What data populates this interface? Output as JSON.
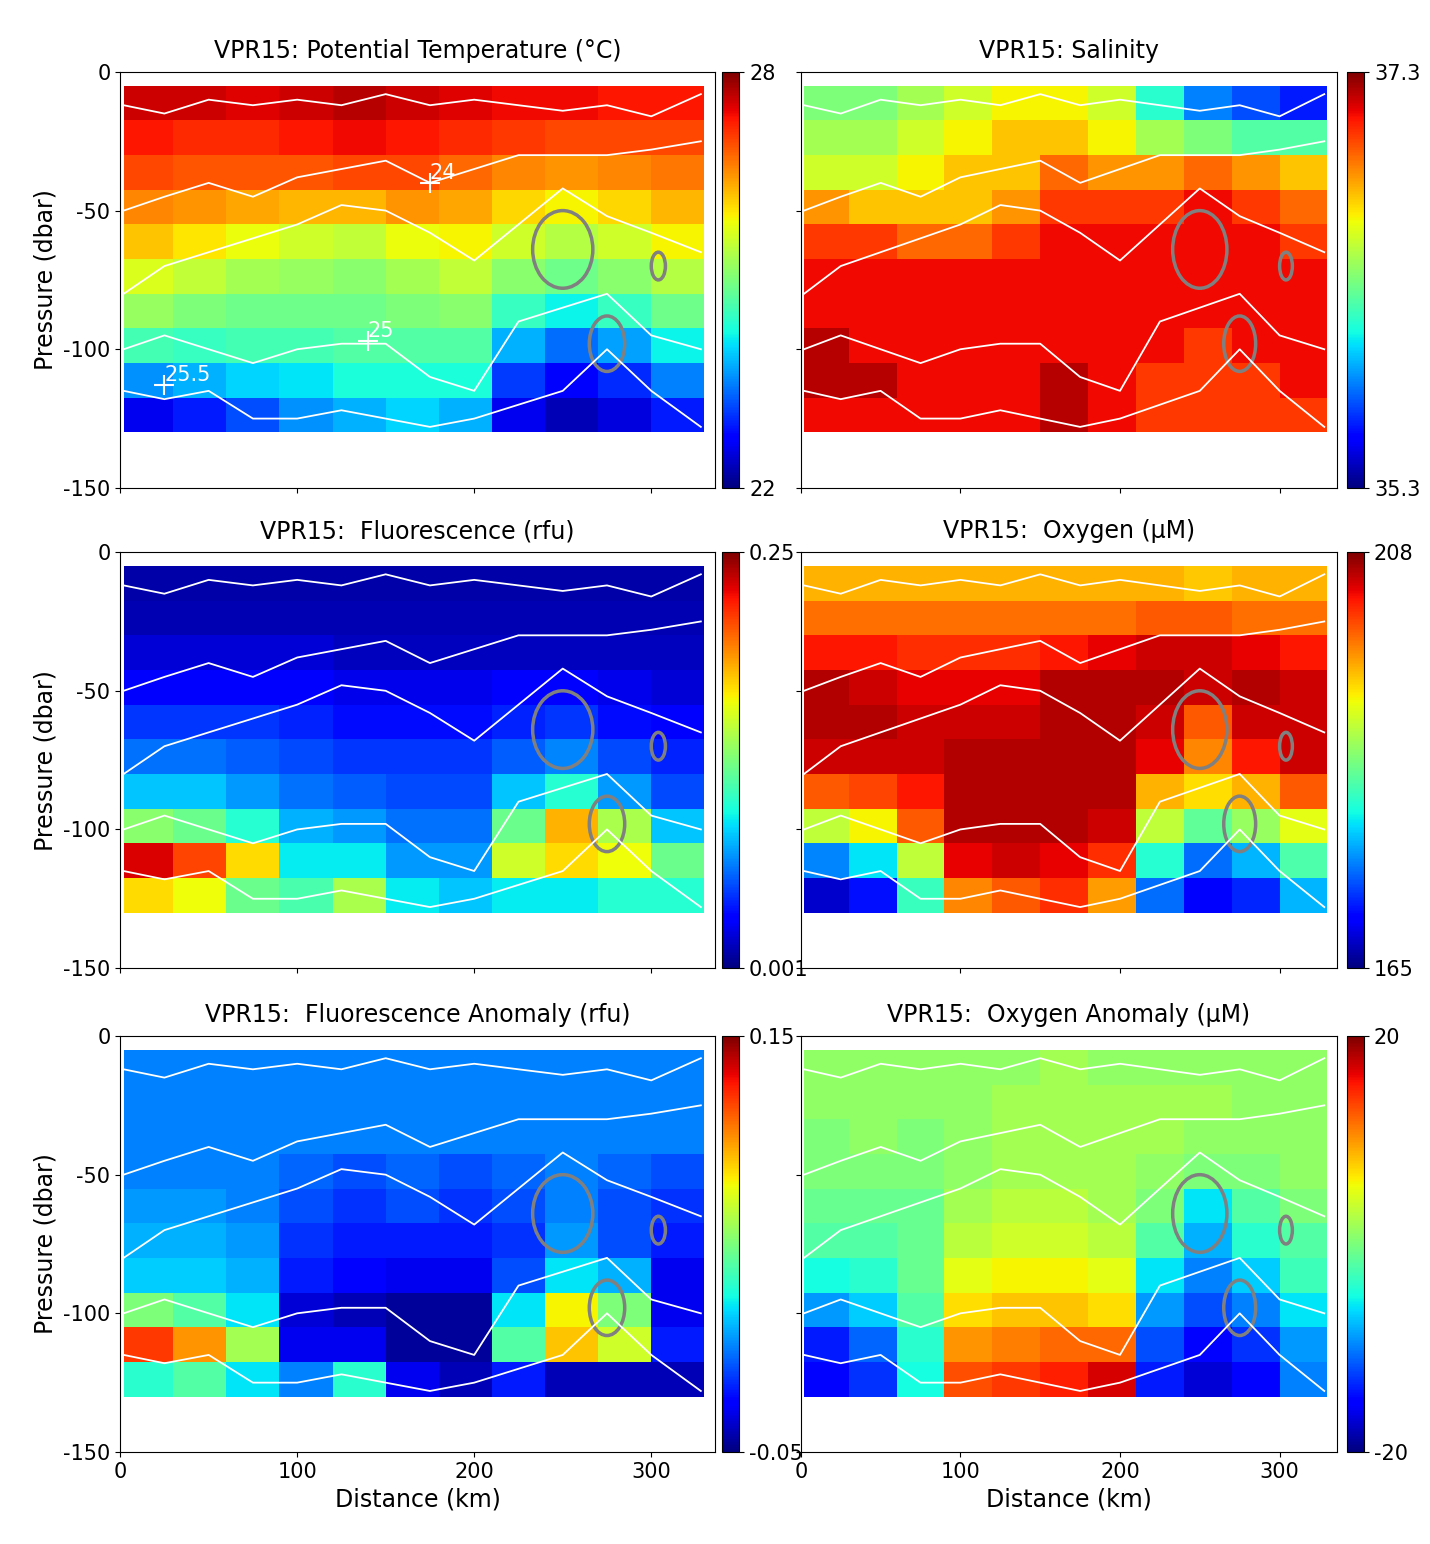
{
  "x_edges": [
    2,
    30,
    60,
    90,
    120,
    150,
    180,
    210,
    240,
    270,
    300,
    330
  ],
  "y_edges": [
    -5,
    -17.5,
    -30,
    -42.5,
    -55,
    -67.5,
    -80,
    -92.5,
    -105,
    -117.5,
    -130
  ],
  "isopycnals": [
    {
      "x": [
        2,
        25,
        50,
        75,
        100,
        125,
        150,
        175,
        200,
        225,
        250,
        275,
        300,
        328
      ],
      "y": [
        -12,
        -15,
        -10,
        -12,
        -10,
        -12,
        -8,
        -12,
        -10,
        -12,
        -14,
        -12,
        -16,
        -8
      ]
    },
    {
      "x": [
        2,
        25,
        50,
        75,
        100,
        125,
        150,
        175,
        200,
        225,
        250,
        275,
        300,
        328
      ],
      "y": [
        -50,
        -45,
        -40,
        -45,
        -38,
        -35,
        -32,
        -40,
        -35,
        -30,
        -30,
        -30,
        -28,
        -25
      ]
    },
    {
      "x": [
        2,
        25,
        50,
        75,
        100,
        125,
        150,
        175,
        200,
        225,
        250,
        275,
        300,
        328
      ],
      "y": [
        -80,
        -70,
        -65,
        -60,
        -55,
        -48,
        -50,
        -58,
        -68,
        -55,
        -42,
        -52,
        -58,
        -65
      ]
    },
    {
      "x": [
        2,
        25,
        50,
        75,
        100,
        125,
        150,
        175,
        200,
        225,
        250,
        275,
        300,
        328
      ],
      "y": [
        -100,
        -95,
        -100,
        -105,
        -100,
        -98,
        -98,
        -110,
        -115,
        -90,
        -85,
        -80,
        -95,
        -100
      ]
    },
    {
      "x": [
        2,
        25,
        50,
        75,
        100,
        125,
        150,
        175,
        200,
        225,
        250,
        275,
        300,
        328
      ],
      "y": [
        -115,
        -118,
        -115,
        -125,
        -125,
        -122,
        -125,
        -128,
        -125,
        -120,
        -115,
        -100,
        -115,
        -128
      ]
    }
  ],
  "circles": [
    {
      "x": 250,
      "y": -64,
      "width": 34,
      "height": 28
    },
    {
      "x": 275,
      "y": -98,
      "width": 20,
      "height": 20
    },
    {
      "x": 304,
      "y": -70,
      "width": 8,
      "height": 10
    }
  ],
  "chart_data": [
    {
      "type": "heatmap",
      "title": "VPR15: Potential Temperature (°C)",
      "y_label": "Pressure (dbar)",
      "xlim": [
        0,
        336
      ],
      "ylim": [
        -150,
        0
      ],
      "xticks": [
        0,
        100,
        200,
        300
      ],
      "yticks": [
        -150,
        -100,
        -50,
        0
      ],
      "tick_labels": "y",
      "colorbar": {
        "range": [
          22,
          28
        ],
        "ticks": [
          22,
          28
        ]
      },
      "isopycnal_labels": [
        {
          "label": "24",
          "x": 175,
          "y": -40
        },
        {
          "label": "25",
          "x": 140,
          "y": -97
        },
        {
          "label": "25.5",
          "x": 25,
          "y": -113
        }
      ],
      "cells": [
        [
          27.6,
          27.6,
          27.5,
          27.6,
          27.7,
          27.6,
          27.5,
          27.4,
          27.4,
          27.3,
          27.3
        ],
        [
          27.3,
          27.2,
          27.2,
          27.3,
          27.4,
          27.3,
          27.2,
          27.1,
          27.0,
          27.0,
          27.0
        ],
        [
          27.0,
          26.9,
          26.9,
          26.9,
          27.0,
          27.0,
          26.8,
          26.6,
          26.5,
          26.6,
          26.7
        ],
        [
          26.6,
          26.5,
          26.4,
          26.3,
          26.3,
          26.5,
          26.4,
          26.1,
          25.9,
          26.1,
          26.3
        ],
        [
          26.2,
          26.0,
          25.8,
          25.6,
          25.5,
          25.8,
          25.9,
          25.6,
          25.4,
          25.6,
          25.9
        ],
        [
          25.7,
          25.5,
          25.3,
          25.2,
          25.1,
          25.3,
          25.5,
          25.1,
          24.9,
          25.1,
          25.4
        ],
        [
          25.2,
          25.0,
          24.9,
          24.9,
          24.9,
          25.0,
          25.1,
          24.5,
          24.2,
          24.5,
          24.9
        ],
        [
          24.6,
          24.5,
          24.6,
          24.6,
          24.7,
          24.7,
          24.7,
          23.8,
          23.4,
          23.7,
          24.2
        ],
        [
          23.6,
          23.8,
          24.0,
          24.1,
          24.3,
          24.3,
          24.3,
          23.1,
          22.7,
          23.0,
          23.5
        ],
        [
          22.6,
          22.9,
          23.2,
          23.6,
          23.8,
          24.0,
          23.8,
          22.6,
          22.3,
          22.5,
          22.9
        ]
      ]
    },
    {
      "type": "heatmap",
      "title": "VPR15: Salinity",
      "xlim": [
        0,
        336
      ],
      "ylim": [
        -150,
        0
      ],
      "xticks": [
        0,
        100,
        200,
        300
      ],
      "yticks": [
        -150,
        -100,
        -50,
        0
      ],
      "tick_labels": false,
      "colorbar": {
        "range": [
          35.3,
          37.3
        ],
        "ticks": [
          35.3,
          37.3
        ]
      },
      "cells": [
        [
          36.3,
          36.3,
          36.4,
          36.5,
          36.6,
          36.6,
          36.5,
          36.1,
          35.8,
          35.7,
          35.6
        ],
        [
          36.4,
          36.4,
          36.5,
          36.6,
          36.7,
          36.7,
          36.6,
          36.4,
          36.3,
          36.2,
          36.2
        ],
        [
          36.5,
          36.5,
          36.6,
          36.7,
          36.7,
          36.9,
          36.8,
          36.8,
          36.9,
          36.8,
          36.7
        ],
        [
          36.8,
          36.7,
          36.7,
          36.7,
          36.8,
          37.0,
          37.0,
          37.0,
          37.1,
          37.0,
          36.9
        ],
        [
          37.0,
          37.0,
          36.9,
          36.9,
          37.0,
          37.1,
          37.1,
          37.1,
          37.1,
          37.1,
          37.0
        ],
        [
          37.1,
          37.1,
          37.1,
          37.1,
          37.1,
          37.1,
          37.1,
          37.1,
          37.1,
          37.1,
          37.1
        ],
        [
          37.1,
          37.1,
          37.1,
          37.1,
          37.1,
          37.1,
          37.1,
          37.1,
          37.1,
          37.1,
          37.1
        ],
        [
          37.2,
          37.1,
          37.1,
          37.1,
          37.1,
          37.1,
          37.1,
          37.1,
          37.0,
          37.1,
          37.1
        ],
        [
          37.2,
          37.2,
          37.1,
          37.1,
          37.1,
          37.2,
          37.1,
          37.0,
          37.0,
          37.0,
          37.1
        ],
        [
          37.1,
          37.1,
          37.1,
          37.1,
          37.1,
          37.2,
          37.1,
          37.0,
          37.0,
          37.0,
          37.0
        ]
      ]
    },
    {
      "type": "heatmap",
      "title": "VPR15:  Fluorescence (rfu)",
      "y_label": "Pressure (dbar)",
      "xlim": [
        0,
        336
      ],
      "ylim": [
        -150,
        0
      ],
      "xticks": [
        0,
        100,
        200,
        300
      ],
      "yticks": [
        -150,
        -100,
        -50,
        0
      ],
      "tick_labels": "y",
      "colorbar": {
        "range": [
          0.001,
          0.25
        ],
        "ticks": [
          0.001,
          0.25
        ]
      },
      "cells": [
        [
          0.01,
          0.01,
          0.01,
          0.01,
          0.01,
          0.01,
          0.01,
          0.01,
          0.01,
          0.01,
          0.01
        ],
        [
          0.012,
          0.012,
          0.012,
          0.012,
          0.012,
          0.012,
          0.012,
          0.012,
          0.012,
          0.012,
          0.012
        ],
        [
          0.02,
          0.02,
          0.02,
          0.02,
          0.015,
          0.015,
          0.015,
          0.015,
          0.015,
          0.015,
          0.015
        ],
        [
          0.03,
          0.03,
          0.03,
          0.03,
          0.025,
          0.025,
          0.025,
          0.03,
          0.03,
          0.025,
          0.02
        ],
        [
          0.045,
          0.045,
          0.045,
          0.04,
          0.035,
          0.035,
          0.035,
          0.04,
          0.045,
          0.035,
          0.03
        ],
        [
          0.06,
          0.06,
          0.055,
          0.05,
          0.045,
          0.045,
          0.045,
          0.055,
          0.065,
          0.05,
          0.04
        ],
        [
          0.08,
          0.08,
          0.07,
          0.06,
          0.055,
          0.05,
          0.05,
          0.08,
          0.1,
          0.07,
          0.05
        ],
        [
          0.13,
          0.12,
          0.1,
          0.075,
          0.07,
          0.06,
          0.06,
          0.12,
          0.18,
          0.14,
          0.08
        ],
        [
          0.23,
          0.21,
          0.17,
          0.09,
          0.09,
          0.07,
          0.07,
          0.15,
          0.17,
          0.16,
          0.12
        ],
        [
          0.17,
          0.16,
          0.12,
          0.11,
          0.14,
          0.09,
          0.08,
          0.09,
          0.09,
          0.1,
          0.1
        ]
      ]
    },
    {
      "type": "heatmap",
      "title": "VPR15:  Oxygen (µM)",
      "xlim": [
        0,
        336
      ],
      "ylim": [
        -150,
        0
      ],
      "xticks": [
        0,
        100,
        200,
        300
      ],
      "yticks": [
        -150,
        -100,
        -50,
        0
      ],
      "tick_labels": false,
      "colorbar": {
        "range": [
          165,
          208
        ],
        "ticks": [
          165,
          208
        ]
      },
      "cells": [
        [
          196,
          196,
          196,
          196,
          196,
          196,
          196,
          196,
          195,
          196,
          196
        ],
        [
          199,
          199,
          199,
          199,
          199,
          199,
          199,
          200,
          200,
          199,
          199
        ],
        [
          203,
          203,
          202,
          202,
          202,
          203,
          204,
          205,
          205,
          204,
          203
        ],
        [
          206,
          205,
          204,
          204,
          204,
          206,
          206,
          206,
          205,
          206,
          205
        ],
        [
          206,
          206,
          205,
          205,
          205,
          206,
          206,
          205,
          200,
          205,
          205
        ],
        [
          205,
          205,
          205,
          206,
          206,
          206,
          206,
          204,
          198,
          203,
          205
        ],
        [
          200,
          201,
          203,
          206,
          206,
          206,
          206,
          196,
          194,
          196,
          200
        ],
        [
          190,
          193,
          200,
          206,
          206,
          206,
          205,
          190,
          185,
          188,
          192
        ],
        [
          176,
          180,
          190,
          204,
          205,
          204,
          202,
          182,
          175,
          178,
          184
        ],
        [
          168,
          171,
          183,
          198,
          200,
          202,
          197,
          175,
          170,
          172,
          178
        ]
      ]
    },
    {
      "type": "heatmap",
      "title": "VPR15:  Fluorescence Anomaly (rfu)",
      "x_label": "Distance (km)",
      "y_label": "Pressure (dbar)",
      "xlim": [
        0,
        336
      ],
      "ylim": [
        -150,
        0
      ],
      "xticks": [
        0,
        100,
        200,
        300
      ],
      "yticks": [
        -150,
        -100,
        -50,
        0
      ],
      "tick_labels": true,
      "colorbar": {
        "range": [
          -0.05,
          0.15
        ],
        "ticks": [
          -0.05,
          0.15
        ]
      },
      "cells": [
        [
          0.0,
          0.0,
          0.0,
          0.0,
          0.0,
          0.0,
          0.0,
          0.0,
          0.0,
          0.0,
          0.0
        ],
        [
          0.0,
          0.0,
          0.0,
          0.0,
          0.0,
          0.0,
          0.0,
          0.0,
          0.0,
          0.0,
          0.0
        ],
        [
          0.0,
          0.0,
          0.0,
          0.0,
          0.0,
          0.0,
          0.0,
          0.0,
          0.0,
          0.0,
          0.0
        ],
        [
          0.0,
          0.0,
          0.0,
          -0.005,
          -0.01,
          -0.005,
          -0.01,
          -0.005,
          0.0,
          -0.005,
          -0.01
        ],
        [
          0.005,
          0.005,
          0.0,
          -0.01,
          -0.015,
          -0.01,
          -0.015,
          -0.01,
          0.0,
          -0.01,
          -0.015
        ],
        [
          0.01,
          0.01,
          0.005,
          -0.015,
          -0.02,
          -0.02,
          -0.02,
          -0.015,
          0.005,
          -0.01,
          -0.02
        ],
        [
          0.015,
          0.015,
          0.01,
          -0.02,
          -0.025,
          -0.03,
          -0.03,
          -0.01,
          0.02,
          0.01,
          -0.03
        ],
        [
          0.05,
          0.04,
          0.02,
          -0.035,
          -0.04,
          -0.045,
          -0.045,
          0.02,
          0.08,
          0.05,
          -0.03
        ],
        [
          0.12,
          0.1,
          0.06,
          -0.03,
          -0.03,
          -0.045,
          -0.045,
          0.04,
          0.09,
          0.07,
          -0.02
        ],
        [
          0.03,
          0.04,
          0.02,
          0.0,
          0.03,
          -0.03,
          -0.04,
          -0.02,
          -0.04,
          -0.04,
          -0.04
        ]
      ]
    },
    {
      "type": "heatmap",
      "title": "VPR15:  Oxygen Anomaly (µM)",
      "x_label": "Distance (km)",
      "xlim": [
        0,
        336
      ],
      "ylim": [
        -150,
        0
      ],
      "xticks": [
        0,
        100,
        200,
        300
      ],
      "yticks": [
        -150,
        -100,
        -50,
        0
      ],
      "tick_labels": "x",
      "colorbar": {
        "range": [
          -20,
          20
        ],
        "ticks": [
          -20,
          20
        ]
      },
      "cells": [
        [
          1,
          1,
          1,
          1,
          1,
          2,
          1,
          1,
          1,
          1,
          1
        ],
        [
          1,
          1,
          1,
          1,
          2,
          2,
          2,
          2,
          2,
          1,
          1
        ],
        [
          0,
          1,
          0,
          1,
          2,
          2,
          2,
          2,
          1,
          1,
          1
        ],
        [
          0,
          0,
          0,
          1,
          2,
          2,
          2,
          1,
          0,
          0,
          1
        ],
        [
          -1,
          -1,
          -1,
          2,
          3,
          3,
          2,
          0,
          -6,
          -2,
          0
        ],
        [
          -2,
          -2,
          -1,
          3,
          4,
          4,
          3,
          -2,
          -8,
          -4,
          -2
        ],
        [
          -5,
          -4,
          -1,
          5,
          6,
          6,
          5,
          -6,
          -10,
          -7,
          -3
        ],
        [
          -9,
          -7,
          -2,
          7,
          8,
          8,
          7,
          -9,
          -12,
          -10,
          -6
        ],
        [
          -14,
          -11,
          -4,
          10,
          11,
          12,
          12,
          -12,
          -15,
          -13,
          -9
        ],
        [
          -15,
          -13,
          -5,
          13,
          14,
          15,
          17,
          -14,
          -17,
          -15,
          -10
        ]
      ]
    }
  ]
}
